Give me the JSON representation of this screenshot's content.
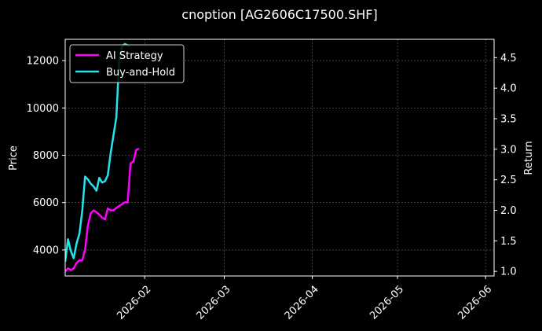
{
  "chart_data": {
    "type": "line",
    "title": "cnoption [AG2606C17500.SHF]",
    "ylabel": "Price",
    "y2label": "Return",
    "grid": true,
    "legend_position": "top-left",
    "x_ticks": [
      "2026-02",
      "2026-03",
      "2026-04",
      "2026-05",
      "2026-06"
    ],
    "y_ticks": [
      "4000",
      "6000",
      "8000",
      "10000",
      "12000"
    ],
    "y2_ticks": [
      "1.0",
      "1.5",
      "2.0",
      "2.5",
      "3.0",
      "3.5",
      "4.0",
      "4.5"
    ],
    "xlim": [
      "2026-01-04",
      "2026-06-04"
    ],
    "ylim": [
      2900,
      12900
    ],
    "y2lim": [
      0.925,
      4.8
    ],
    "series": [
      {
        "name": "AI Strategy",
        "color": "#ff00ff",
        "axis": "right",
        "x": [
          "2026-01-04",
          "2026-01-05",
          "2026-01-06",
          "2026-01-07",
          "2026-01-08",
          "2026-01-09",
          "2026-01-10",
          "2026-01-11",
          "2026-01-12",
          "2026-01-13",
          "2026-01-14",
          "2026-01-15",
          "2026-01-16",
          "2026-01-17",
          "2026-01-18",
          "2026-01-19",
          "2026-01-20",
          "2026-01-21",
          "2026-01-22",
          "2026-01-23",
          "2026-01-24",
          "2026-01-25",
          "2026-01-26",
          "2026-01-27",
          "2026-01-28",
          "2026-01-29",
          "2026-01-30"
        ],
        "values": [
          1.0,
          1.05,
          1.02,
          1.05,
          1.14,
          1.18,
          1.18,
          1.36,
          1.75,
          1.95,
          2.0,
          1.97,
          1.93,
          1.88,
          1.85,
          2.03,
          2.0,
          2.0,
          2.04,
          2.07,
          2.1,
          2.13,
          2.13,
          2.77,
          2.8,
          2.99,
          3.01
        ]
      },
      {
        "name": "Buy-and-Hold",
        "color": "#22e5f0",
        "axis": "left",
        "x": [
          "2026-01-04",
          "2026-01-05",
          "2026-01-06",
          "2026-01-07",
          "2026-01-08",
          "2026-01-09",
          "2026-01-10",
          "2026-01-11",
          "2026-01-12",
          "2026-01-13",
          "2026-01-14",
          "2026-01-15",
          "2026-01-16",
          "2026-01-17",
          "2026-01-18",
          "2026-01-19",
          "2026-01-20",
          "2026-01-21",
          "2026-01-22",
          "2026-01-23",
          "2026-01-24",
          "2026-01-25",
          "2026-01-26",
          "2026-01-27"
        ],
        "values": [
          3500,
          4450,
          3950,
          3650,
          4280,
          4680,
          5650,
          7100,
          6980,
          6800,
          6680,
          6500,
          7050,
          6850,
          6900,
          7150,
          8100,
          8850,
          9600,
          12000,
          12600,
          12700,
          12650,
          12600
        ]
      }
    ]
  }
}
